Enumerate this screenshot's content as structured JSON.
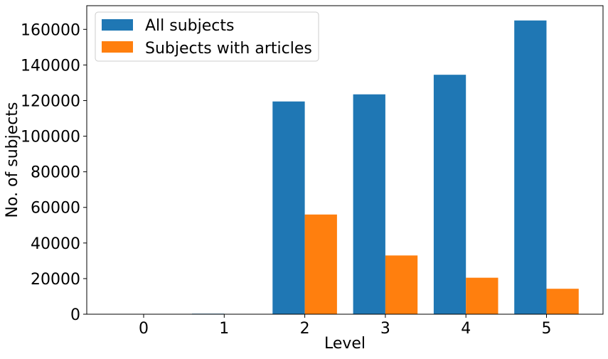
{
  "chart_data": {
    "type": "bar",
    "title": "",
    "xlabel": "Level",
    "ylabel": "No. of subjects",
    "categories": [
      "0",
      "1",
      "2",
      "3",
      "4",
      "5"
    ],
    "series": [
      {
        "name": "All subjects",
        "color": "#1f77b4",
        "values": [
          0,
          300,
          119500,
          123500,
          134500,
          165000
        ]
      },
      {
        "name": "Subjects with articles",
        "color": "#ff7f0e",
        "values": [
          0,
          200,
          56000,
          33000,
          20500,
          14300
        ]
      }
    ],
    "yticks": [
      "0",
      "20000",
      "40000",
      "60000",
      "80000",
      "100000",
      "120000",
      "140000",
      "160000"
    ],
    "ylim": [
      0,
      173300
    ],
    "grid": false,
    "legend_position": "top-left"
  }
}
